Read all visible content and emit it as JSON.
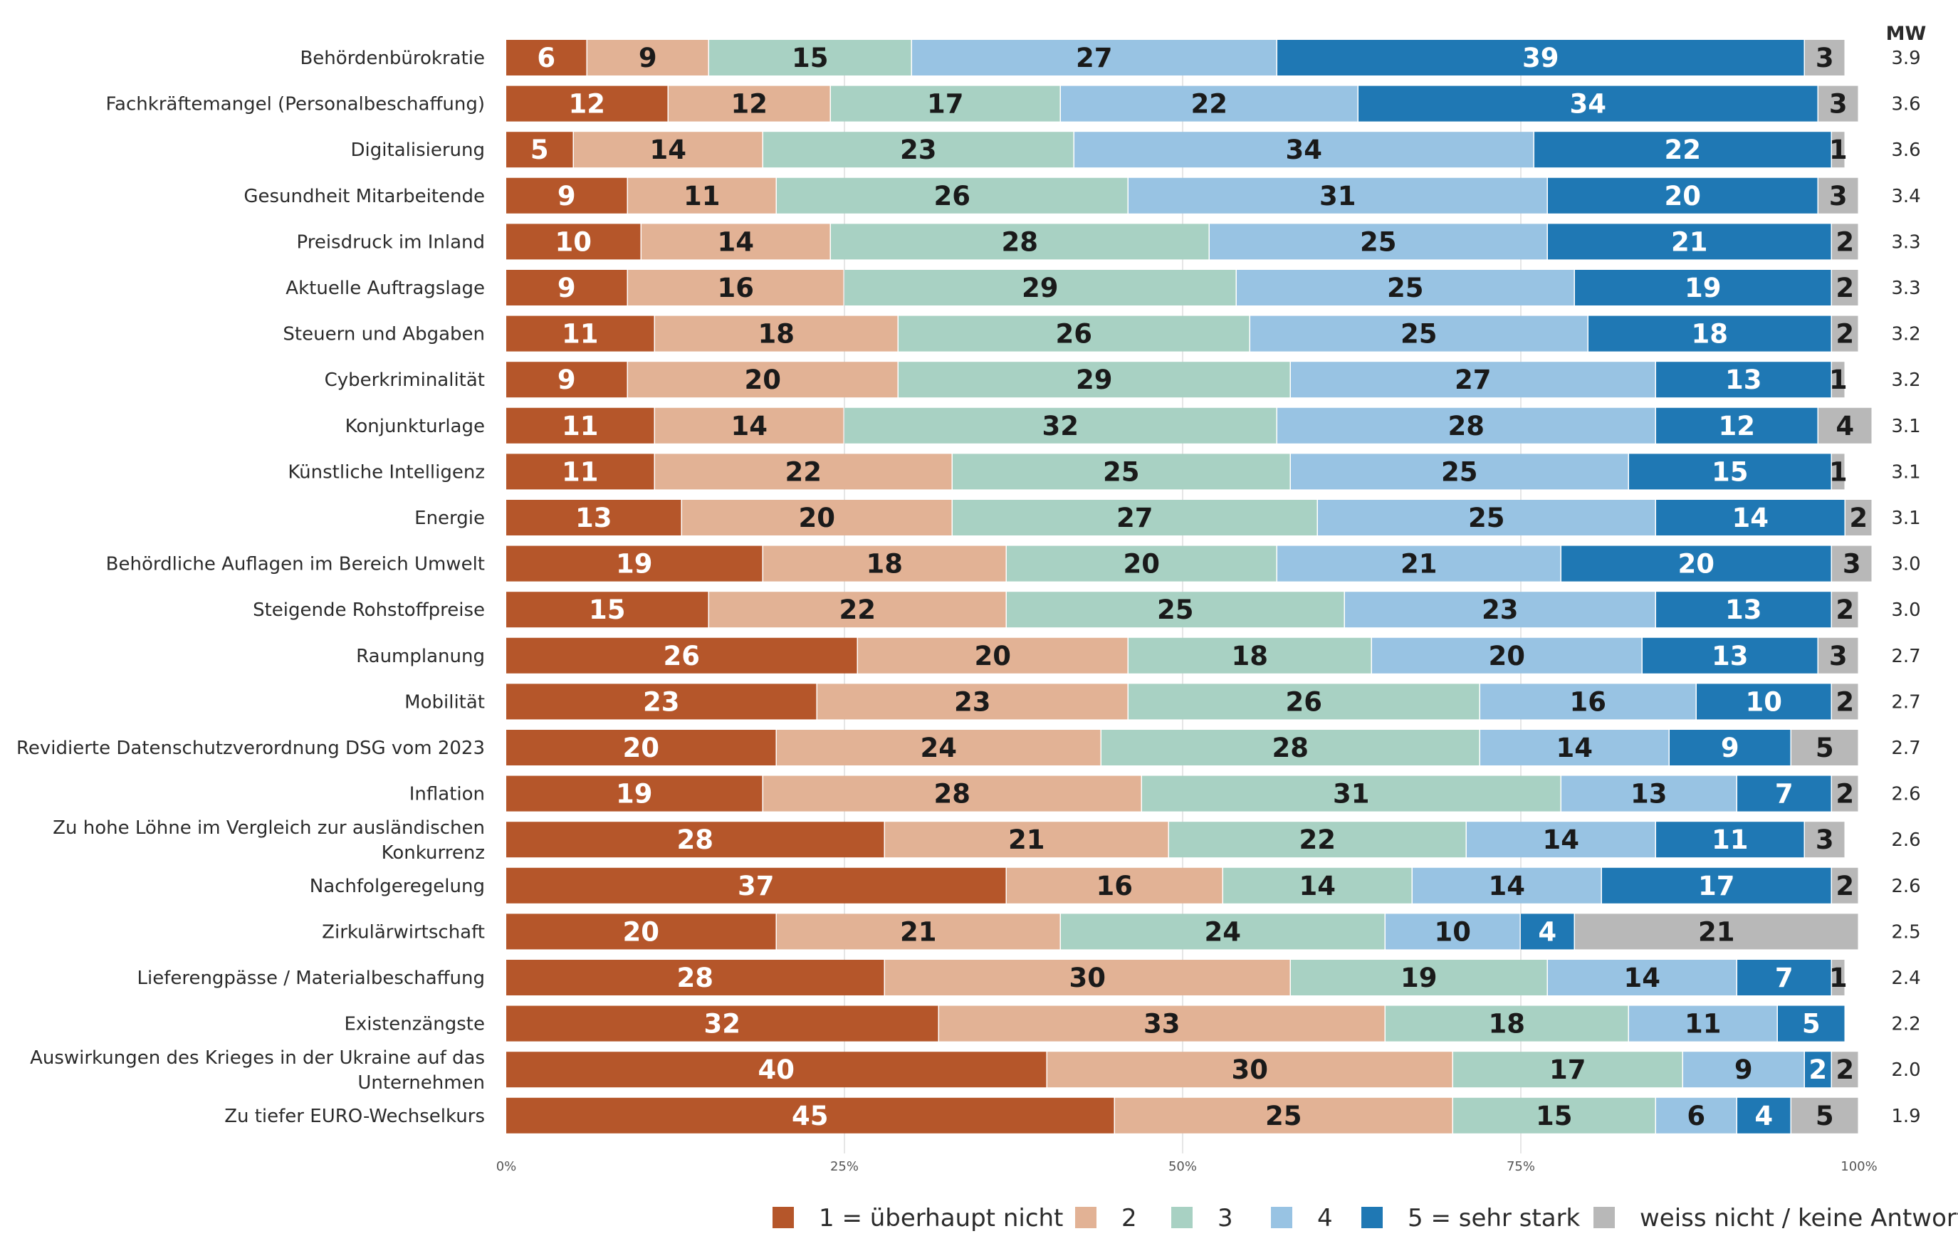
{
  "chart_data": {
    "type": "bar",
    "orientation": "horizontal",
    "stacked": true,
    "percent_scale": true,
    "mean_header": "MW",
    "x_ticks": [
      "0%",
      "25%",
      "50%",
      "75%",
      "100%"
    ],
    "xlim": [
      0,
      100
    ],
    "categories": [
      "Behördenbürokratie",
      "Fachkräftemangel (Personalbeschaffung)",
      "Digitalisierung",
      "Gesundheit Mitarbeitende",
      "Preisdruck im Inland",
      "Aktuelle Auftragslage",
      "Steuern und Abgaben",
      "Cyberkriminalität",
      "Konjunkturlage",
      "Künstliche Intelligenz",
      "Energie",
      "Behördliche Auflagen im Bereich Umwelt",
      "Steigende Rohstoffpreise",
      "Raumplanung",
      "Mobilität",
      "Revidierte Datenschutzverordnung DSG vom 2023",
      "Inflation",
      "Zu hohe Löhne im Vergleich zur ausländischen Konkurrenz",
      "Nachfolgeregelung",
      "Zirkulärwirtschaft",
      "Lieferengpässe / Materialbeschaffung",
      "Existenzängste",
      "Auswirkungen des Krieges in der Ukraine auf das Unternehmen",
      "Zu tiefer EURO-Wechselkurs"
    ],
    "category_lines": [
      [
        "Behördenbürokratie"
      ],
      [
        "Fachkräftemangel (Personalbeschaffung)"
      ],
      [
        "Digitalisierung"
      ],
      [
        "Gesundheit Mitarbeitende"
      ],
      [
        "Preisdruck im Inland"
      ],
      [
        "Aktuelle Auftragslage"
      ],
      [
        "Steuern und Abgaben"
      ],
      [
        "Cyberkriminalität"
      ],
      [
        "Konjunkturlage"
      ],
      [
        "Künstliche Intelligenz"
      ],
      [
        "Energie"
      ],
      [
        "Behördliche Auflagen im Bereich Umwelt"
      ],
      [
        "Steigende Rohstoffpreise"
      ],
      [
        "Raumplanung"
      ],
      [
        "Mobilität"
      ],
      [
        "Revidierte Datenschutzverordnung DSG vom 2023"
      ],
      [
        "Inflation"
      ],
      [
        "Zu hohe Löhne im Vergleich zur ausländischen",
        "Konkurrenz"
      ],
      [
        "Nachfolgeregelung"
      ],
      [
        "Zirkulärwirtschaft"
      ],
      [
        "Lieferengpässe / Materialbeschaffung"
      ],
      [
        "Existenzängste"
      ],
      [
        "Auswirkungen des Krieges in der Ukraine auf das",
        "Unternehmen"
      ],
      [
        "Zu tiefer EURO-Wechselkurs"
      ]
    ],
    "series": [
      {
        "name": "1 = überhaupt nicht",
        "color": "#b5562a",
        "label_color": "#ffffff",
        "values": [
          6,
          12,
          5,
          9,
          10,
          9,
          11,
          9,
          11,
          11,
          13,
          19,
          15,
          26,
          23,
          20,
          19,
          28,
          37,
          20,
          28,
          32,
          40,
          45
        ]
      },
      {
        "name": "2",
        "color": "#e2b295",
        "label_color": "#1a1a1a",
        "values": [
          9,
          12,
          14,
          11,
          14,
          16,
          18,
          20,
          14,
          22,
          20,
          18,
          22,
          20,
          23,
          24,
          28,
          21,
          16,
          21,
          30,
          33,
          30,
          25
        ]
      },
      {
        "name": "3",
        "color": "#a8d1c3",
        "label_color": "#1a1a1a",
        "values": [
          15,
          17,
          23,
          26,
          28,
          29,
          26,
          29,
          32,
          25,
          27,
          20,
          25,
          18,
          26,
          28,
          31,
          22,
          14,
          24,
          19,
          18,
          17,
          15
        ]
      },
      {
        "name": "4",
        "color": "#98c3e3",
        "label_color": "#1a1a1a",
        "values": [
          27,
          22,
          34,
          31,
          25,
          25,
          25,
          27,
          28,
          25,
          25,
          21,
          23,
          20,
          16,
          14,
          13,
          14,
          14,
          10,
          14,
          11,
          9,
          6
        ]
      },
      {
        "name": "5 = sehr stark",
        "color": "#1f78b4",
        "label_color": "#ffffff",
        "values": [
          39,
          34,
          22,
          20,
          21,
          19,
          18,
          13,
          12,
          15,
          14,
          20,
          13,
          13,
          10,
          9,
          7,
          11,
          17,
          4,
          7,
          5,
          2,
          4
        ]
      },
      {
        "name": "weiss nicht / keine Antwort",
        "color": "#b8b8b8",
        "label_color": "#1a1a1a",
        "values": [
          3,
          3,
          1,
          3,
          2,
          2,
          2,
          1,
          4,
          1,
          2,
          3,
          2,
          3,
          2,
          5,
          2,
          3,
          2,
          21,
          1,
          0,
          2,
          5
        ]
      }
    ],
    "mean_values": [
      "3.9",
      "3.6",
      "3.6",
      "3.4",
      "3.3",
      "3.3",
      "3.2",
      "3.2",
      "3.1",
      "3.1",
      "3.1",
      "3.0",
      "3.0",
      "2.7",
      "2.7",
      "2.7",
      "2.6",
      "2.6",
      "2.6",
      "2.5",
      "2.4",
      "2.2",
      "2.0",
      "1.9"
    ],
    "legend_position": "bottom-right"
  }
}
